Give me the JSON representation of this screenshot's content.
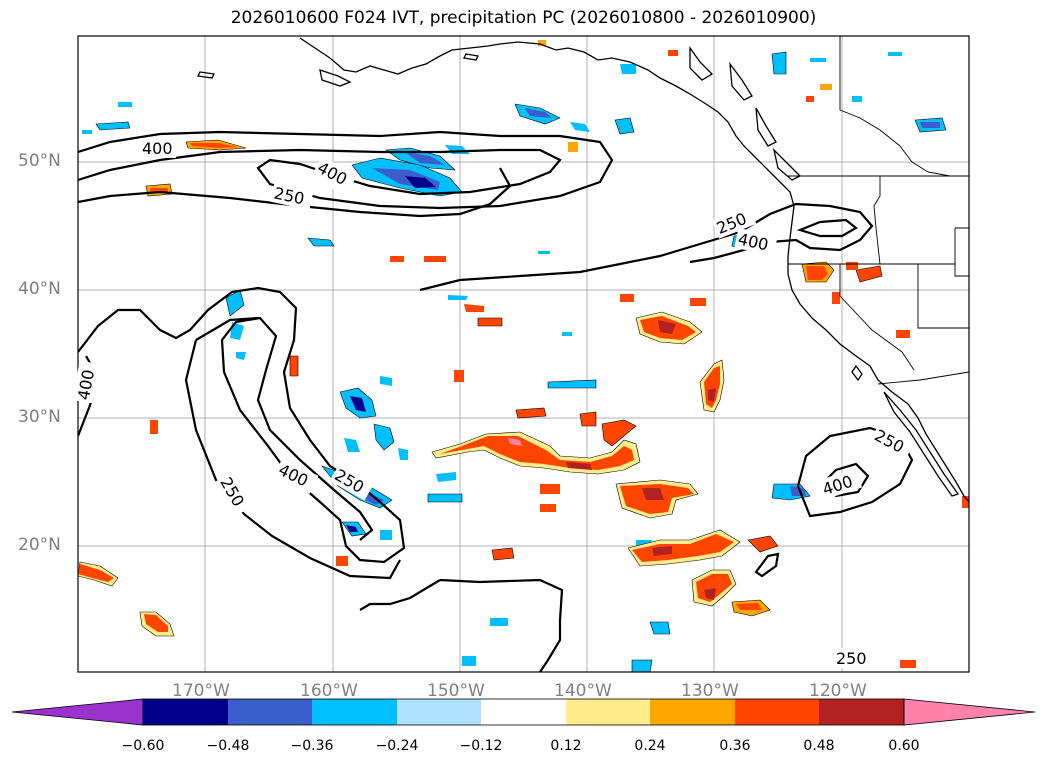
{
  "title": "2026010600 F024 IVT, precipitation PC (2026010800 - 2026010900)",
  "lat_labels": [
    "50°N",
    "40°N",
    "30°N",
    "20°N"
  ],
  "lon_labels": [
    "170°W",
    "160°W",
    "150°W",
    "140°W",
    "130°W",
    "120°W"
  ],
  "contour_labels": [
    {
      "text": "400"
    },
    {
      "text": "400"
    },
    {
      "text": "250"
    },
    {
      "text": "250"
    },
    {
      "text": "400"
    },
    {
      "text": "400"
    },
    {
      "text": "400"
    },
    {
      "text": "250"
    },
    {
      "text": "250"
    },
    {
      "text": "250"
    },
    {
      "text": "400"
    },
    {
      "text": "250"
    }
  ],
  "colorbar": {
    "ticks": [
      "−0.60",
      "−0.48",
      "−0.36",
      "−0.24",
      "−0.12",
      "0.12",
      "0.24",
      "0.36",
      "0.48",
      "0.60"
    ],
    "colors": [
      "#9a32cd",
      "#00008b",
      "#3a5fcd",
      "#00bfff",
      "#b0e2ff",
      "#ffffff",
      "#ffec8b",
      "#ffa500",
      "#ff4500",
      "#b22222",
      "#ff82ab"
    ]
  },
  "colors": {
    "neg_light": "#b0e2ff",
    "neg_mid": "#00bfff",
    "neg_dark": "#3a5fcd",
    "neg_deep": "#00008b",
    "pos_light": "#ffec8b",
    "pos_mid": "#ffa500",
    "pos_dark": "#ff4500",
    "pos_deep": "#b22222",
    "pos_max": "#ff82ab"
  }
}
